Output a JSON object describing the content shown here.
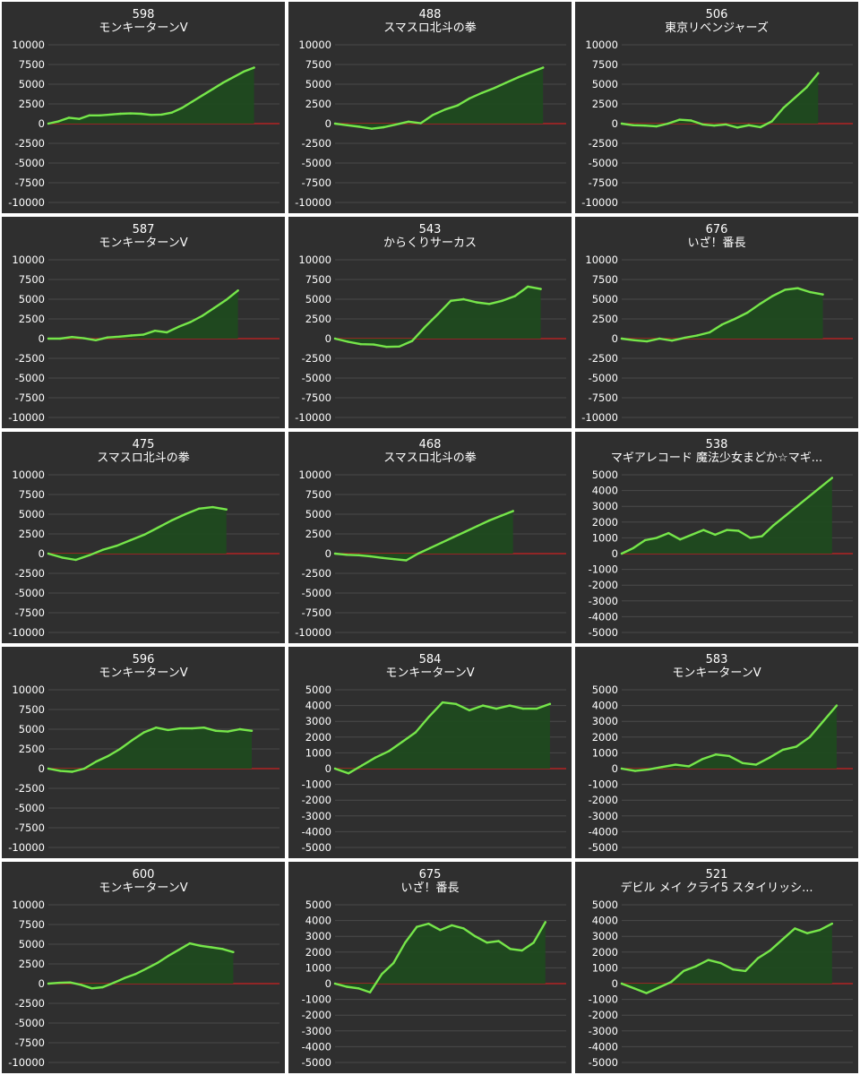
{
  "colors": {
    "background": "#2f2f2f",
    "line": "#76e64a",
    "fill": "#1f4a1f",
    "zero_line": "#cc2222",
    "grid": "#4a4a4a",
    "text": "#ffffff"
  },
  "chart_data": [
    {
      "type": "area",
      "id": "598",
      "title": "モンキーターンV",
      "ylim": [
        -10000,
        10000
      ],
      "yticks": [
        10000,
        7500,
        5000,
        2500,
        0,
        -2500,
        -5000,
        -7500,
        -10000
      ],
      "grid": true,
      "values": [
        0,
        300,
        750,
        600,
        1050,
        1050,
        1150,
        1250,
        1300,
        1250,
        1100,
        1150,
        1400,
        2000,
        2800,
        3600,
        4400,
        5200,
        5900,
        6600,
        7100
      ]
    },
    {
      "type": "area",
      "id": "488",
      "title": "スマスロ北斗の拳",
      "ylim": [
        -10000,
        10000
      ],
      "yticks": [
        10000,
        7500,
        5000,
        2500,
        0,
        -2500,
        -5000,
        -7500,
        -10000
      ],
      "grid": true,
      "values": [
        0,
        -200,
        -400,
        -650,
        -450,
        -100,
        250,
        50,
        1100,
        1800,
        2300,
        3200,
        3900,
        4500,
        5200,
        5900,
        6500,
        7100
      ]
    },
    {
      "type": "area",
      "id": "506",
      "title": "東京リベンジャーズ",
      "ylim": [
        -10000,
        10000
      ],
      "yticks": [
        10000,
        7500,
        5000,
        2500,
        0,
        -2500,
        -5000,
        -7500,
        -10000
      ],
      "grid": true,
      "values": [
        0,
        -200,
        -250,
        -350,
        0,
        500,
        400,
        -100,
        -250,
        -100,
        -500,
        -200,
        -450,
        300,
        2000,
        3300,
        4600,
        6400
      ]
    },
    {
      "type": "area",
      "id": "587",
      "title": "モンキーターンV",
      "ylim": [
        -10000,
        10000
      ],
      "yticks": [
        10000,
        7500,
        5000,
        2500,
        0,
        -2500,
        -5000,
        -7500,
        -10000
      ],
      "grid": true,
      "values": [
        0,
        0,
        200,
        50,
        -200,
        150,
        250,
        400,
        500,
        1000,
        800,
        1500,
        2100,
        2900,
        3900,
        4900,
        6100
      ]
    },
    {
      "type": "area",
      "id": "543",
      "title": "からくりサーカス",
      "ylim": [
        -10000,
        10000
      ],
      "yticks": [
        10000,
        7500,
        5000,
        2500,
        0,
        -2500,
        -5000,
        -7500,
        -10000
      ],
      "grid": true,
      "values": [
        0,
        -400,
        -700,
        -750,
        -1050,
        -1000,
        -300,
        1500,
        3100,
        4800,
        5000,
        4600,
        4400,
        4800,
        5400,
        6600,
        6300
      ]
    },
    {
      "type": "area",
      "id": "676",
      "title": "いざ！番長",
      "ylim": [
        -10000,
        10000
      ],
      "yticks": [
        10000,
        7500,
        5000,
        2500,
        0,
        -2500,
        -5000,
        -7500,
        -10000
      ],
      "grid": true,
      "values": [
        0,
        -200,
        -350,
        0,
        -250,
        100,
        400,
        800,
        1800,
        2500,
        3300,
        4400,
        5400,
        6200,
        6400,
        5900,
        5600
      ]
    },
    {
      "type": "area",
      "id": "475",
      "title": "スマスロ北斗の拳",
      "ylim": [
        -10000,
        10000
      ],
      "yticks": [
        10000,
        7500,
        5000,
        2500,
        0,
        -2500,
        -5000,
        -7500,
        -10000
      ],
      "grid": true,
      "values": [
        0,
        -500,
        -800,
        -200,
        500,
        1000,
        1700,
        2400,
        3300,
        4200,
        5000,
        5700,
        5900,
        5600
      ]
    },
    {
      "type": "area",
      "id": "468",
      "title": "スマスロ北斗の拳",
      "ylim": [
        -10000,
        10000
      ],
      "yticks": [
        10000,
        7500,
        5000,
        2500,
        0,
        -2500,
        -5000,
        -7500,
        -10000
      ],
      "grid": true,
      "values": [
        0,
        -150,
        -200,
        -350,
        -550,
        -700,
        -850,
        0,
        700,
        1400,
        2100,
        2800,
        3500,
        4200,
        4800,
        5400
      ]
    },
    {
      "type": "area",
      "id": "538",
      "title": "マギアレコード 魔法少女まどか☆マギ...",
      "ylim": [
        -5000,
        5000
      ],
      "yticks": [
        5000,
        4000,
        3000,
        2000,
        1000,
        0,
        -1000,
        -2000,
        -3000,
        -4000,
        -5000
      ],
      "grid": true,
      "values": [
        0,
        350,
        850,
        1000,
        1300,
        900,
        1200,
        1500,
        1200,
        1500,
        1450,
        1000,
        1100,
        1800,
        2400,
        3000,
        3600,
        4200,
        4800
      ]
    },
    {
      "type": "area",
      "id": "596",
      "title": "モンキーターンV",
      "ylim": [
        -10000,
        10000
      ],
      "yticks": [
        10000,
        7500,
        5000,
        2500,
        0,
        -2500,
        -5000,
        -7500,
        -10000
      ],
      "grid": true,
      "values": [
        0,
        -300,
        -400,
        0,
        900,
        1600,
        2500,
        3600,
        4600,
        5200,
        4900,
        5100,
        5100,
        5200,
        4800,
        4700,
        5000,
        4800
      ]
    },
    {
      "type": "area",
      "id": "584",
      "title": "モンキーターンV",
      "ylim": [
        -5000,
        5000
      ],
      "yticks": [
        5000,
        4000,
        3000,
        2000,
        1000,
        0,
        -1000,
        -2000,
        -3000,
        -4000,
        -5000
      ],
      "grid": true,
      "values": [
        0,
        -300,
        200,
        700,
        1100,
        1700,
        2300,
        3300,
        4200,
        4100,
        3700,
        4000,
        3800,
        4000,
        3800,
        3800,
        4100
      ]
    },
    {
      "type": "area",
      "id": "583",
      "title": "モンキーターンV",
      "ylim": [
        -5000,
        5000
      ],
      "yticks": [
        5000,
        4000,
        3000,
        2000,
        1000,
        0,
        -1000,
        -2000,
        -3000,
        -4000,
        -5000
      ],
      "grid": true,
      "values": [
        0,
        -150,
        -50,
        100,
        250,
        150,
        600,
        900,
        800,
        350,
        250,
        700,
        1200,
        1400,
        2000,
        3000,
        4000
      ]
    },
    {
      "type": "area",
      "id": "600",
      "title": "モンキーターンV",
      "ylim": [
        -10000,
        10000
      ],
      "yticks": [
        10000,
        7500,
        5000,
        2500,
        0,
        -2500,
        -5000,
        -7500,
        -10000
      ],
      "grid": true,
      "values": [
        0,
        100,
        150,
        -150,
        -600,
        -450,
        100,
        700,
        1200,
        1900,
        2600,
        3500,
        4300,
        5100,
        4800,
        4600,
        4400,
        4000
      ]
    },
    {
      "type": "area",
      "id": "675",
      "title": "いざ！番長",
      "ylim": [
        -5000,
        5000
      ],
      "yticks": [
        5000,
        4000,
        3000,
        2000,
        1000,
        0,
        -1000,
        -2000,
        -3000,
        -4000,
        -5000
      ],
      "grid": true,
      "values": [
        0,
        -200,
        -300,
        -550,
        600,
        1300,
        2600,
        3600,
        3800,
        3400,
        3700,
        3500,
        3000,
        2600,
        2700,
        2200,
        2100,
        2600,
        3900
      ]
    },
    {
      "type": "area",
      "id": "521",
      "title": "デビル メイ クライ5 スタイリッシ...",
      "ylim": [
        -5000,
        5000
      ],
      "yticks": [
        5000,
        4000,
        3000,
        2000,
        1000,
        0,
        -1000,
        -2000,
        -3000,
        -4000,
        -5000
      ],
      "grid": true,
      "values": [
        0,
        -300,
        -600,
        -250,
        100,
        800,
        1100,
        1500,
        1300,
        900,
        800,
        1600,
        2100,
        2800,
        3500,
        3200,
        3400,
        3800
      ]
    }
  ]
}
